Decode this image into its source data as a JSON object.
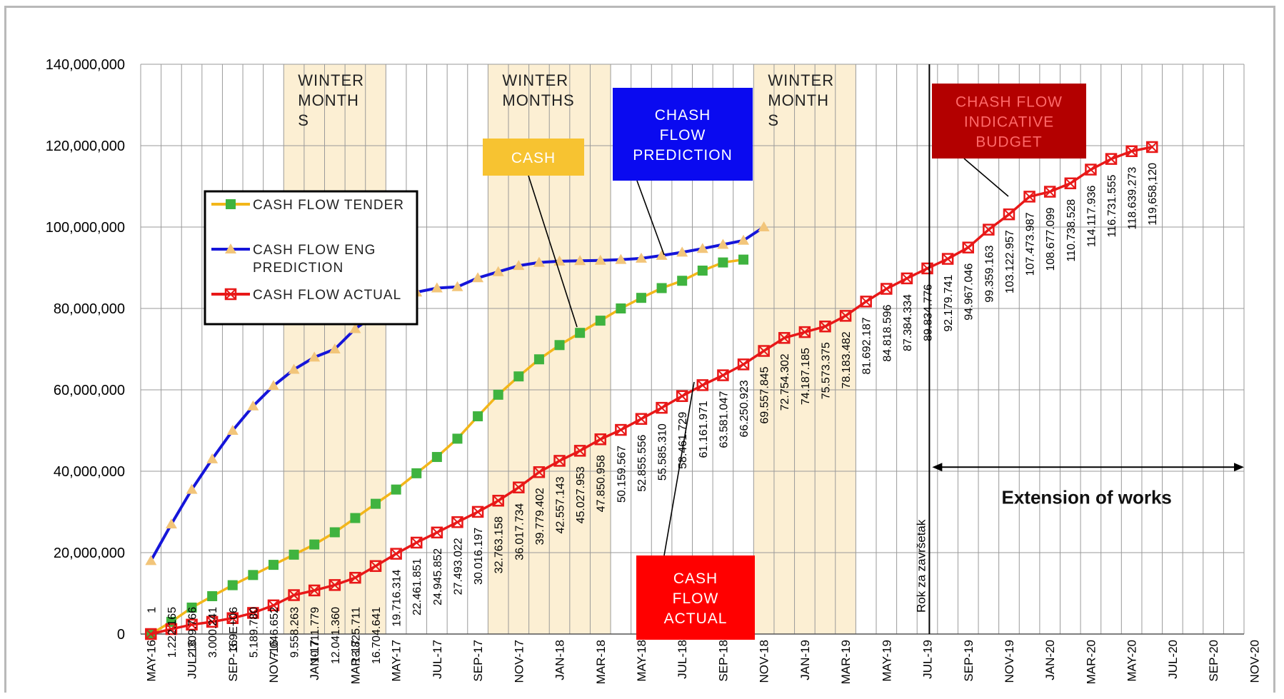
{
  "chart_data": {
    "type": "line",
    "ylim": [
      0,
      140000000
    ],
    "yticks": [
      "140,000,000",
      "120,000,000",
      "100,000,000",
      "80,000,000",
      "60,000,000",
      "40,000,000",
      "20,000,000",
      "0"
    ],
    "x_tick_labels": [
      "MAY-16",
      "JUL-16",
      "SEP-16",
      "NOV-16",
      "JAN-17",
      "MAR-17",
      "MAY-17",
      "JUL-17",
      "SEP-17",
      "NOV-17",
      "JAN-18",
      "MAR-18",
      "MAY-18",
      "JUL-18",
      "SEP-18",
      "NOV-18",
      "JAN-19",
      "MAR-19",
      "MAY-19",
      "JUL-19",
      "SEP-19",
      "NOV-19",
      "JAN-20",
      "MAR-20",
      "MAY-20",
      "JUL-20",
      "SEP-20",
      "NOV-20"
    ],
    "x_start": "MAY-16",
    "x_end": "NOV-20",
    "series": [
      {
        "name": "CASH FLOW TENDER",
        "color": "#f2b61a",
        "marker": "square",
        "marker_color": "#3fb33f",
        "values": [
          0,
          3000000,
          6500000,
          9300000,
          12000000,
          14500000,
          17000000,
          19500000,
          22000000,
          25000000,
          28500000,
          32000000,
          35500000,
          39500000,
          43500000,
          48000000,
          53500000,
          58800000,
          63300000,
          67500000,
          71000000,
          74000000,
          77000000,
          80000000,
          82600000,
          85000000,
          86800000,
          89300000,
          91300000,
          92000000
        ]
      },
      {
        "name": "CASH FLOW ENG PREDICTION",
        "color": "#1515d9",
        "marker": "triangle",
        "marker_color": "#f2c57a",
        "values": [
          18000000,
          27000000,
          35500000,
          43000000,
          50000000,
          56000000,
          61000000,
          65000000,
          68000000,
          70000000,
          75000000,
          78500000,
          82000000,
          84000000,
          85000000,
          85300000,
          87500000,
          89000000,
          90500000,
          91300000,
          91600000,
          91700000,
          91800000,
          92000000,
          92300000,
          93000000,
          93800000,
          94700000,
          95700000,
          96700000,
          100000000
        ]
      },
      {
        "name": "CASH FLOW ACTUAL",
        "color": "#e81818",
        "marker": "x-square",
        "marker_color": "#e81818",
        "values": [
          1,
          1222165,
          2309766,
          3000241,
          3900000,
          5189780,
          7046652,
          9558263,
          10711779,
          12041360,
          13825711,
          16704641,
          19716314,
          22461851,
          24945852,
          27493022,
          30016197,
          32763158,
          36017734,
          39779402,
          42557143,
          45027953,
          47850958,
          50159567,
          52855556,
          55585310,
          58461729,
          61161971,
          63581047,
          66250923,
          69557845,
          72754302,
          74187185,
          75573375,
          78183482,
          81692187,
          84818596,
          87384334,
          89834776,
          92179741,
          94967046,
          99359163,
          103122957,
          107473987,
          108677099,
          110738528,
          114117936,
          116731555,
          118639273,
          119658120
        ]
      }
    ],
    "data_labels": [
      "1",
      "1.222.165",
      "2.309.766",
      "3.000.241",
      "3.9E+06",
      "5.189.780",
      "7.046.652",
      "9.558.263",
      "10.711.779",
      "12.041.360",
      "13.825.711",
      "16.704.641",
      "19.716.314",
      "22.461.851",
      "24.945.852",
      "27.493.022",
      "30.016.197",
      "32.763.158",
      "36.017.734",
      "39.779.402",
      "42.557.143",
      "45.027.953",
      "47.850.958",
      "50.159.567",
      "52.855.556",
      "55.585.310",
      "58.461.729",
      "61.161.971",
      "63.581.047",
      "66.250.923",
      "69.557.845",
      "72.754.302",
      "74.187.185",
      "75.573.375",
      "78.183.482",
      "81.692.187",
      "84.818.596",
      "87.384.334",
      "89.834.776",
      "92.179.741",
      "94.967.046",
      "99.359.163",
      "103.122.957",
      "107.473.987",
      "108.677.099",
      "110.738.528",
      "114.117.936",
      "116.731.555",
      "118.639.273",
      "119,658,120"
    ],
    "winter_bands": [
      {
        "label_lines": [
          "WINTER",
          "MONTH",
          "S"
        ],
        "from": "DEC-16",
        "to": "APR-17"
      },
      {
        "label_lines": [
          "WINTER",
          "MONTHS"
        ],
        "from": "OCT-17",
        "to": "MAR-18"
      },
      {
        "label_lines": [
          "WINTER",
          "MONTH",
          "S"
        ],
        "from": "NOV-18",
        "to": "MAR-19"
      }
    ],
    "deadline_label": "Rok za završetak",
    "extension_label": "Extension of works",
    "callouts": [
      {
        "lines": [
          "CASH"
        ],
        "bg": "#f7c331",
        "fg": "#ffffff"
      },
      {
        "lines": [
          "CHASH",
          "FLOW",
          "PREDICTION"
        ],
        "bg": "#0a0af0",
        "fg": "#ffffff"
      },
      {
        "lines": [
          "CHASH FLOW",
          "INDICATIVE",
          "BUDGET"
        ],
        "bg": "#b30000",
        "fg": "#ff6a6a"
      },
      {
        "lines": [
          "CASH",
          "FLOW",
          "ACTUAL"
        ],
        "bg": "#ff0000",
        "fg": "#ffffff"
      }
    ],
    "legend": {
      "placement": "upper-left",
      "entries": [
        "CASH FLOW TENDER",
        "CASH FLOW ENG PREDICTION",
        "CASH FLOW ACTUAL"
      ]
    }
  }
}
